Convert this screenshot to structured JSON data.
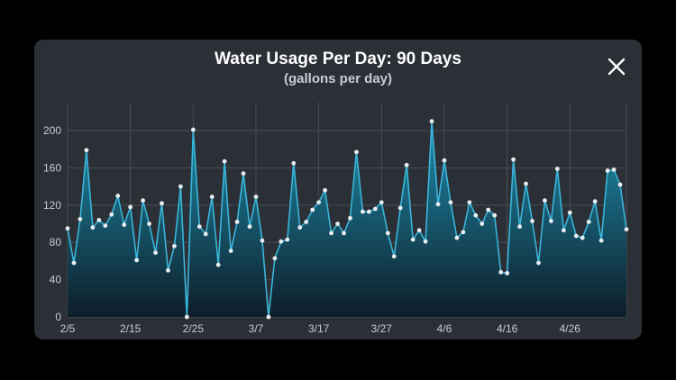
{
  "header": {
    "title": "Water Usage Per Day: 90 Days",
    "subtitle": "(gallons per day)",
    "close_icon": "close-icon"
  },
  "colors": {
    "background": "#000000",
    "card": "#2b2f36",
    "line": "#3ab5d9",
    "area_top": "#1f8fae",
    "area_bottom": "#0d1e29",
    "grid": "#4a4f57",
    "tick_text": "#c9cdd3"
  },
  "chart_data": {
    "type": "area",
    "title": "Water Usage Per Day: 90 Days",
    "subtitle": "(gallons per day)",
    "xlabel": "",
    "ylabel": "",
    "ylim": [
      0,
      230
    ],
    "yticks": [
      0,
      40,
      80,
      120,
      160,
      200
    ],
    "grid": true,
    "legend": "none",
    "xtick_labels": [
      "2/5",
      "2/15",
      "2/25",
      "3/7",
      "3/17",
      "3/27",
      "4/6",
      "4/16",
      "4/26"
    ],
    "xtick_index": [
      0,
      10,
      20,
      30,
      40,
      50,
      60,
      70,
      80
    ],
    "series": [
      {
        "values": [
          95,
          58,
          105,
          179,
          96,
          104,
          98,
          110,
          130,
          99,
          118,
          61,
          125,
          100,
          69,
          122,
          50,
          76,
          140,
          0,
          201,
          97,
          89,
          129,
          56,
          167,
          71,
          102,
          154,
          97,
          129,
          82,
          0,
          63,
          81,
          83,
          165,
          96,
          102,
          115,
          123,
          136,
          90,
          100,
          90,
          106,
          177,
          113,
          113,
          116,
          123,
          90,
          65,
          117,
          163,
          83,
          93,
          81,
          210,
          121,
          168,
          123,
          85,
          91,
          123,
          109,
          100,
          115,
          109,
          48,
          47,
          169,
          97,
          143,
          103,
          58,
          125,
          103,
          159,
          93,
          112,
          87,
          85,
          102,
          124,
          82,
          157,
          158,
          142,
          94
        ]
      }
    ]
  }
}
